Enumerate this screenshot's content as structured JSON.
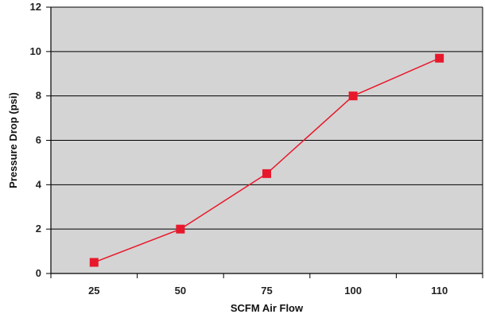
{
  "chart_data": {
    "type": "line",
    "title": "",
    "xlabel": "SCFM Air Flow",
    "ylabel": "Pressure Drop (psi)",
    "categories": [
      "25",
      "50",
      "75",
      "100",
      "110"
    ],
    "series": [
      {
        "values": [
          0.5,
          2.0,
          4.5,
          8.0,
          9.7
        ]
      }
    ],
    "ylim": [
      0,
      12
    ],
    "yticks": [
      "0",
      "2",
      "4",
      "6",
      "8",
      "10",
      "12"
    ],
    "grid": true,
    "legend": "none",
    "colors": {
      "plot_background": "#d4d4d4",
      "line": "#e8182c",
      "marker": "#e8182c",
      "grid": "#000000",
      "axis": "#000000"
    }
  }
}
